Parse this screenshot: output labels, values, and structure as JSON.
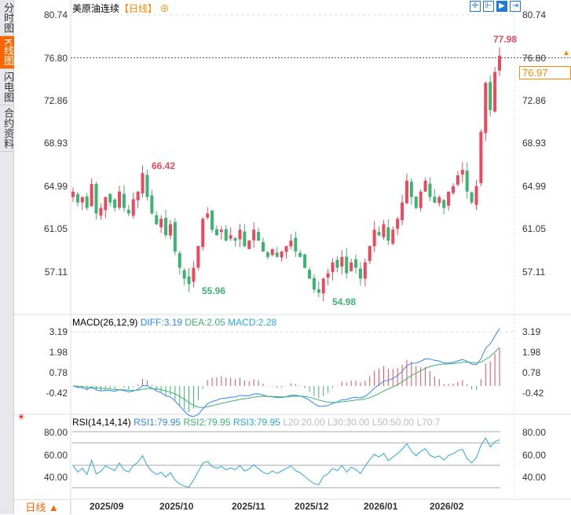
{
  "sidebar": {
    "tabs": [
      {
        "label": "分时图"
      },
      {
        "label": "K线图"
      },
      {
        "label": "闪电图"
      },
      {
        "label": "合约资料"
      }
    ]
  },
  "header": {
    "title": "美原油连续",
    "period_tag": "【日线】",
    "add_icon": "plus-circle-icon"
  },
  "toolbar": {
    "icons": [
      "crosshair-icon",
      "zoom-range-icon",
      "play-forward-icon",
      "jump-end-icon"
    ]
  },
  "price_axis": {
    "ticks": [
      "80.74",
      "76.80",
      "72.86",
      "68.93",
      "64.99",
      "61.05",
      "57.11"
    ],
    "min": 57.11,
    "max": 80.74
  },
  "annotations": {
    "high": "77.98",
    "peak1": "66.42",
    "low1": "55.96",
    "low2": "54.98",
    "last_price": "76.97",
    "ref_line": "76.80"
  },
  "macd": {
    "label": "MACD(26,12,9)",
    "diff": "DIFF:3.19",
    "dea": "DEA:2.05",
    "macd": "MACD:2.28",
    "ticks": [
      "3.19",
      "1.98",
      "0.78",
      "-0.42"
    ]
  },
  "rsi": {
    "label": "RSI(14,14,14)",
    "rsi1": "RSI1:79.95",
    "rsi2": "RSI2:79.95",
    "rsi3": "RSI3:79.95",
    "l20": "L20:20.00",
    "l30": "L30:30.00",
    "l50": "L50:50.00",
    "l70": "L70:7",
    "ticks": [
      "80.00",
      "60.00",
      "40.00"
    ]
  },
  "dates": [
    "2025/09",
    "2025/10",
    "2025/11",
    "2025/12",
    "2026/01",
    "2026/02"
  ],
  "period_selector": "日线 ▲",
  "colors": {
    "up": "#e84a5f",
    "down": "#3cb371",
    "diff": "#2f86f6",
    "dea": "#3cb371",
    "rsi": "#2aa7e0",
    "accent": "#ff6600"
  },
  "chart_data": {
    "type": "candlestick",
    "closes": [
      64.5,
      63.5,
      64,
      63,
      65.2,
      62.5,
      63,
      64,
      63.5,
      63,
      64.5,
      63,
      62.5,
      63.8,
      64.5,
      66.2,
      64,
      62.5,
      61.5,
      62,
      60.5,
      61.5,
      59,
      57.5,
      56.5,
      56,
      57.5,
      59.5,
      62,
      62.5,
      61,
      60.5,
      61,
      60,
      60.5,
      60,
      61,
      59.5,
      60,
      61,
      60,
      59,
      58.5,
      59.2,
      58.5,
      59,
      59.5,
      60,
      59,
      58.5,
      57.5,
      56.5,
      55.5,
      55.2,
      56.5,
      57,
      58,
      57.5,
      58.5,
      57,
      58,
      57.5,
      56.5,
      58,
      59.5,
      61,
      60.5,
      61.5,
      60,
      61,
      62,
      63.5,
      65.5,
      64,
      63,
      64.5,
      65.5,
      64,
      63.5,
      64,
      63,
      64.5,
      65,
      66,
      66.5,
      64.5,
      63.5,
      65,
      70,
      74.5,
      72,
      75.5,
      77
    ]
  }
}
